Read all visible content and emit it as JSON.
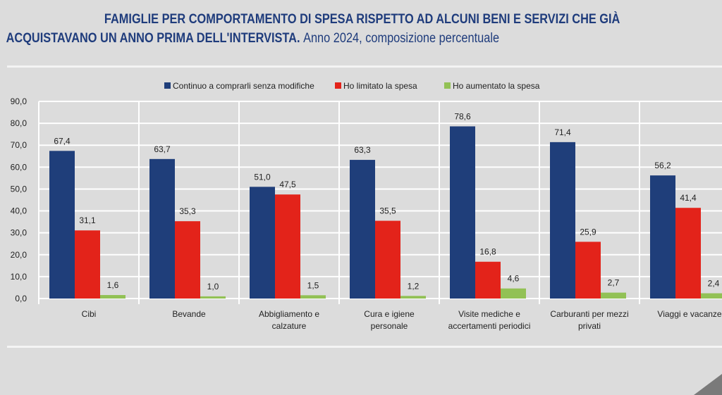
{
  "title": {
    "line1": "FAMIGLIE PER COMPORTAMENTO DI SPESA RISPETTO AD ALCUNI BENI E SERVIZI CHE GIÀ",
    "line2": "ACQUISTAVANO UN ANNO PRIMA DELL'INTERVISTA.",
    "subtitle": "Anno 2024, composizione percentuale"
  },
  "chart_data": {
    "type": "bar",
    "categories": [
      "Cibi",
      "Bevande",
      "Abbigliamento e calzature",
      "Cura e igiene personale",
      "Visite mediche e accertamenti periodici",
      "Carburanti per mezzi privati",
      "Viaggi e vacanze"
    ],
    "category_lines": [
      [
        "Cibi"
      ],
      [
        "Bevande"
      ],
      [
        "Abbigliamento e",
        "calzature"
      ],
      [
        "Cura e igiene",
        "personale"
      ],
      [
        "Visite mediche e",
        "accertamenti periodici"
      ],
      [
        "Carburanti per mezzi",
        "privati"
      ],
      [
        "Viaggi e vacanze"
      ]
    ],
    "series": [
      {
        "name": "Continuo a comprarli senza modifiche",
        "color": "#1f3e7a",
        "values": [
          67.4,
          63.7,
          51.0,
          63.3,
          78.6,
          71.4,
          56.2
        ]
      },
      {
        "name": "Ho limitato la spesa",
        "color": "#e3231a",
        "values": [
          31.1,
          35.3,
          47.5,
          35.5,
          16.8,
          25.9,
          41.4
        ]
      },
      {
        "name": "Ho aumentato la spesa",
        "color": "#92c155",
        "values": [
          1.6,
          1.0,
          1.5,
          1.2,
          4.6,
          2.7,
          2.4
        ]
      }
    ],
    "ylim": [
      0,
      90
    ],
    "yticks": [
      "0,0",
      "10,0",
      "20,0",
      "30,0",
      "40,0",
      "50,0",
      "60,0",
      "70,0",
      "80,0",
      "90,0"
    ],
    "grid": true,
    "legend": "top",
    "decimal_separator": ","
  }
}
